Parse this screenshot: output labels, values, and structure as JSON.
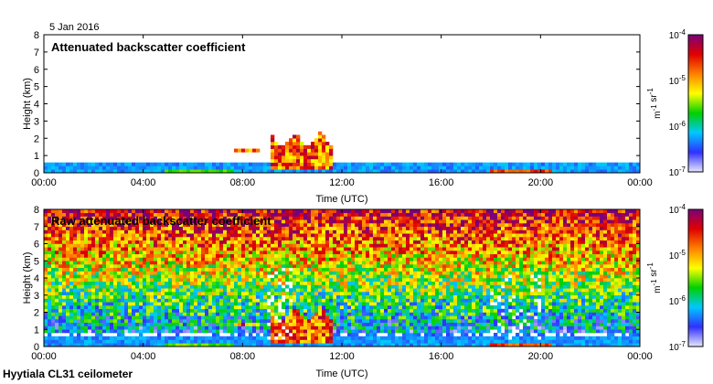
{
  "header": {
    "date": "5 Jan 2016"
  },
  "footer": {
    "instrument": "Hyytiala CL31 ceilometer"
  },
  "colorbar": {
    "tick_labels": [
      "10-7",
      "10-6",
      "10-5",
      "10-4"
    ],
    "unit_label": "m-1 sr-1",
    "colors": [
      "#e6e6ff",
      "#3030ff",
      "#00c8ff",
      "#00d000",
      "#ffff00",
      "#ff8000",
      "#e00000",
      "#7a007a"
    ]
  },
  "chart_data": [
    {
      "type": "heatmap",
      "title": "Attenuated backscatter coefficient",
      "xlabel": "Time (UTC)",
      "ylabel": "Height (km)",
      "xlim": [
        0,
        24
      ],
      "ylim": [
        0,
        8
      ],
      "x_tick_labels": [
        "00:00",
        "04:00",
        "08:00",
        "12:00",
        "16:00",
        "20:00",
        "00:00"
      ],
      "y_tick_labels": [
        "0",
        "1",
        "2",
        "3",
        "4",
        "5",
        "6",
        "7",
        "8"
      ],
      "colorbar_range": [
        "1e-7",
        "1e-4"
      ],
      "features": [
        {
          "name": "boundary layer",
          "start_h": 0,
          "end_h": 24,
          "top_km": 0.6
        },
        {
          "name": "cloud",
          "start_h": 7.6,
          "end_h": 8.7,
          "base_km": 1.2,
          "top_km": 1.4
        },
        {
          "name": "cloud",
          "start_h": 9.2,
          "end_h": 11.6,
          "base_km": 0.2,
          "top_km": 2.4
        }
      ]
    },
    {
      "type": "heatmap",
      "title": "Raw attenuated backscatter coefficient",
      "xlabel": "Time (UTC)",
      "ylabel": "Height (km)",
      "xlim": [
        0,
        24
      ],
      "ylim": [
        0,
        8
      ],
      "x_tick_labels": [
        "00:00",
        "04:00",
        "08:00",
        "12:00",
        "16:00",
        "20:00",
        "00:00"
      ],
      "y_tick_labels": [
        "0",
        "1",
        "2",
        "3",
        "4",
        "5",
        "6",
        "7",
        "8"
      ],
      "colorbar_range": [
        "1e-7",
        "1e-4"
      ],
      "features": [
        {
          "name": "noise",
          "start_h": 0,
          "end_h": 24,
          "base_km": 1.0,
          "top_km": 8.0
        },
        {
          "name": "cloud",
          "start_h": 7.6,
          "end_h": 8.7,
          "base_km": 1.2,
          "top_km": 1.4
        },
        {
          "name": "cloud",
          "start_h": 9.2,
          "end_h": 11.6,
          "base_km": 0.2,
          "top_km": 2.4
        },
        {
          "name": "precipitation",
          "start_h": 9.0,
          "end_h": 10.0,
          "base_km": 0.5,
          "top_km": 4.8
        },
        {
          "name": "precipitation",
          "start_h": 18.0,
          "end_h": 20.0,
          "base_km": 0.5,
          "top_km": 4.2
        }
      ]
    }
  ]
}
